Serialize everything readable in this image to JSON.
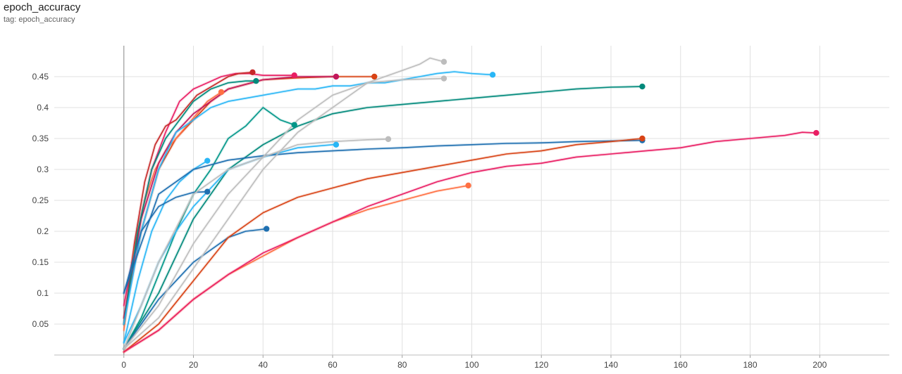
{
  "header": {
    "title": "epoch_accuracy",
    "tag": "tag: epoch_accuracy"
  },
  "chart_data": {
    "type": "line",
    "title": "epoch_accuracy",
    "subtitle": "tag: epoch_accuracy",
    "xlabel": "",
    "ylabel": "",
    "xlim": [
      -20,
      220
    ],
    "ylim": [
      0,
      0.5
    ],
    "x_ticks": [
      0,
      20,
      40,
      60,
      80,
      100,
      120,
      140,
      160,
      180,
      200
    ],
    "x_tick_labels": [
      "0",
      "20",
      "40",
      "60",
      "80",
      "100",
      "120",
      "140",
      "160",
      "180",
      "200"
    ],
    "y_ticks": [
      0.05,
      0.1,
      0.15,
      0.2,
      0.25,
      0.3,
      0.35,
      0.4,
      0.45
    ],
    "y_tick_labels": [
      "0.05",
      "0.1",
      "0.15",
      "0.2",
      "0.25",
      "0.3",
      "0.35",
      "0.4",
      "0.45"
    ],
    "grid": true,
    "legend": "none",
    "series": [
      {
        "color": "#e91e63",
        "x": [
          0,
          4,
          8,
          12,
          16,
          20,
          24,
          28,
          32,
          36,
          40,
          45,
          49
        ],
        "y": [
          0.08,
          0.2,
          0.3,
          0.36,
          0.41,
          0.43,
          0.44,
          0.45,
          0.455,
          0.455,
          0.452,
          0.452,
          0.452
        ]
      },
      {
        "color": "#c62828",
        "x": [
          0,
          3,
          6,
          9,
          12,
          15,
          18,
          21,
          24,
          27,
          30,
          33,
          37
        ],
        "y": [
          0.05,
          0.18,
          0.28,
          0.34,
          0.37,
          0.38,
          0.4,
          0.42,
          0.43,
          0.44,
          0.45,
          0.455,
          0.457
        ]
      },
      {
        "color": "#d84315",
        "x": [
          0,
          5,
          10,
          15,
          20,
          25,
          30,
          40,
          50,
          60,
          72
        ],
        "y": [
          0.06,
          0.2,
          0.3,
          0.35,
          0.38,
          0.41,
          0.43,
          0.445,
          0.448,
          0.45,
          0.45
        ]
      },
      {
        "color": "#ff7043",
        "x": [
          0,
          3,
          6,
          9,
          12,
          15,
          18,
          21,
          24,
          28
        ],
        "y": [
          0.04,
          0.17,
          0.25,
          0.3,
          0.33,
          0.35,
          0.37,
          0.39,
          0.41,
          0.425
        ]
      },
      {
        "color": "#c2185b",
        "x": [
          0,
          5,
          10,
          15,
          20,
          30,
          40,
          50,
          61
        ],
        "y": [
          0.06,
          0.22,
          0.31,
          0.36,
          0.39,
          0.43,
          0.445,
          0.45,
          0.45
        ]
      },
      {
        "color": "#00897b",
        "x": [
          0,
          4,
          8,
          12,
          16,
          20,
          25,
          30,
          35,
          38
        ],
        "y": [
          0.05,
          0.2,
          0.3,
          0.35,
          0.38,
          0.41,
          0.43,
          0.44,
          0.443,
          0.443
        ]
      },
      {
        "color": "#009688",
        "x": [
          0,
          5,
          10,
          15,
          20,
          25,
          30,
          35,
          40,
          45,
          49
        ],
        "y": [
          0.01,
          0.06,
          0.13,
          0.2,
          0.26,
          0.3,
          0.35,
          0.37,
          0.4,
          0.38,
          0.372
        ]
      },
      {
        "color": "#00897b",
        "x": [
          0,
          10,
          20,
          30,
          40,
          50,
          60,
          70,
          80,
          90,
          100,
          110,
          120,
          130,
          140,
          149
        ],
        "y": [
          0.01,
          0.1,
          0.22,
          0.3,
          0.34,
          0.37,
          0.39,
          0.4,
          0.405,
          0.41,
          0.415,
          0.42,
          0.425,
          0.43,
          0.433,
          0.434
        ]
      },
      {
        "color": "#29b6f6",
        "x": [
          0,
          5,
          10,
          15,
          20,
          25,
          30,
          35,
          40,
          45,
          50,
          55,
          60,
          65,
          70,
          75,
          80,
          85,
          90,
          95,
          100,
          106
        ],
        "y": [
          0.05,
          0.2,
          0.3,
          0.36,
          0.38,
          0.4,
          0.41,
          0.415,
          0.42,
          0.425,
          0.43,
          0.43,
          0.435,
          0.435,
          0.44,
          0.44,
          0.445,
          0.45,
          0.455,
          0.458,
          0.455,
          0.453
        ]
      },
      {
        "color": "#29b6f6",
        "x": [
          0,
          4,
          8,
          12,
          16,
          20,
          24
        ],
        "y": [
          0.02,
          0.12,
          0.2,
          0.25,
          0.28,
          0.3,
          0.314
        ]
      },
      {
        "color": "#29b6f6",
        "x": [
          0,
          5,
          10,
          15,
          20,
          25,
          30,
          40,
          50,
          60,
          61
        ],
        "y": [
          0.02,
          0.08,
          0.15,
          0.2,
          0.24,
          0.27,
          0.3,
          0.32,
          0.335,
          0.34,
          0.34
        ]
      },
      {
        "color": "#1e6fb0",
        "x": [
          0,
          5,
          10,
          15,
          20,
          24
        ],
        "y": [
          0.1,
          0.2,
          0.24,
          0.255,
          0.263,
          0.264
        ]
      },
      {
        "color": "#1e6fb0",
        "x": [
          0,
          10,
          20,
          30,
          40,
          50,
          60,
          70,
          80,
          90,
          100,
          110,
          120,
          130,
          140,
          149
        ],
        "y": [
          0.1,
          0.26,
          0.3,
          0.315,
          0.322,
          0.327,
          0.33,
          0.333,
          0.335,
          0.338,
          0.34,
          0.342,
          0.343,
          0.345,
          0.346,
          0.347
        ]
      },
      {
        "color": "#1e6fb0",
        "x": [
          0,
          5,
          10,
          15,
          20,
          25,
          30,
          35,
          41
        ],
        "y": [
          0.01,
          0.05,
          0.09,
          0.12,
          0.15,
          0.17,
          0.19,
          0.2,
          0.204
        ]
      },
      {
        "color": "#bdbdbd",
        "x": [
          0,
          10,
          20,
          30,
          40,
          50,
          60,
          65,
          70,
          75,
          80,
          85,
          88,
          92
        ],
        "y": [
          0.01,
          0.06,
          0.14,
          0.22,
          0.3,
          0.36,
          0.4,
          0.42,
          0.44,
          0.45,
          0.46,
          0.47,
          0.48,
          0.474
        ]
      },
      {
        "color": "#bdbdbd",
        "x": [
          0,
          10,
          20,
          30,
          40,
          50,
          60,
          70,
          80,
          92
        ],
        "y": [
          0.01,
          0.08,
          0.18,
          0.26,
          0.32,
          0.38,
          0.42,
          0.44,
          0.445,
          0.447
        ]
      },
      {
        "color": "#bdbdbd",
        "x": [
          0,
          10,
          20,
          30,
          40,
          50,
          60,
          70,
          76
        ],
        "y": [
          0.01,
          0.15,
          0.26,
          0.3,
          0.32,
          0.34,
          0.345,
          0.348,
          0.349
        ]
      },
      {
        "color": "#d84315",
        "x": [
          0,
          10,
          20,
          30,
          40,
          50,
          60,
          70,
          80,
          90,
          100,
          110,
          120,
          130,
          140,
          149
        ],
        "y": [
          0.005,
          0.05,
          0.12,
          0.19,
          0.23,
          0.255,
          0.27,
          0.285,
          0.295,
          0.305,
          0.315,
          0.325,
          0.33,
          0.34,
          0.345,
          0.35
        ]
      },
      {
        "color": "#ff7043",
        "x": [
          0,
          10,
          20,
          30,
          40,
          50,
          60,
          70,
          80,
          90,
          99
        ],
        "y": [
          0.005,
          0.04,
          0.09,
          0.13,
          0.16,
          0.19,
          0.215,
          0.235,
          0.25,
          0.265,
          0.274
        ]
      },
      {
        "color": "#e91e63",
        "x": [
          0,
          10,
          20,
          30,
          40,
          50,
          60,
          70,
          80,
          90,
          100,
          110,
          120,
          130,
          140,
          150,
          160,
          170,
          180,
          190,
          195,
          199
        ],
        "y": [
          0.005,
          0.04,
          0.09,
          0.13,
          0.165,
          0.19,
          0.215,
          0.24,
          0.26,
          0.28,
          0.295,
          0.305,
          0.31,
          0.32,
          0.325,
          0.33,
          0.335,
          0.345,
          0.35,
          0.355,
          0.36,
          0.359
        ]
      }
    ]
  }
}
